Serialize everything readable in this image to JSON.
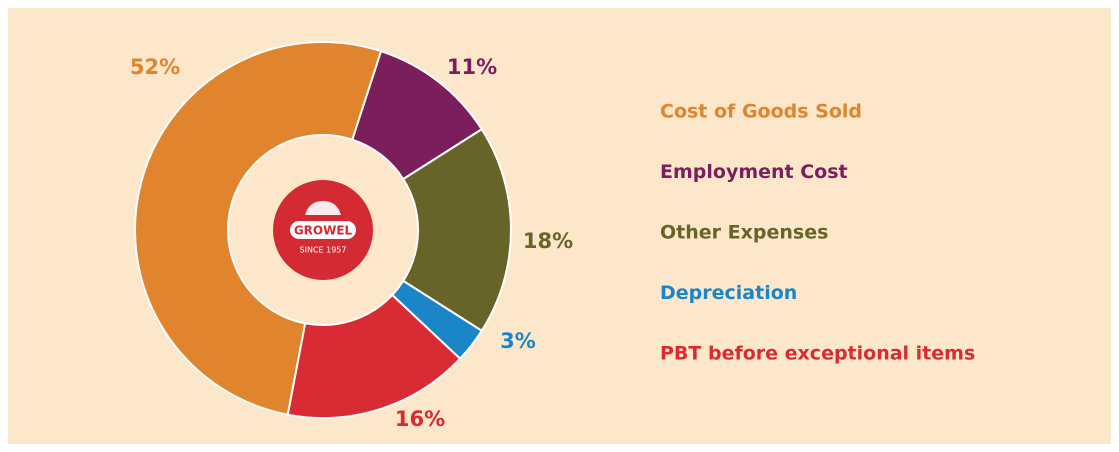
{
  "chart_data": {
    "type": "donut",
    "categories": [
      "Cost of Goods Sold",
      "Employment Cost",
      "Other Expenses",
      "Depreciation",
      "PBT before exceptional items"
    ],
    "values": [
      52,
      11,
      18,
      3,
      16
    ],
    "value_labels": [
      "52%",
      "11%",
      "18%",
      "3%",
      "16%"
    ],
    "colors": [
      "#e0842e",
      "#7b1f5c",
      "#676429",
      "#1a86c7",
      "#d92b33"
    ],
    "legend": "right"
  },
  "logo": {
    "name": "GROWEL",
    "tagline": "SINCE 1957"
  }
}
